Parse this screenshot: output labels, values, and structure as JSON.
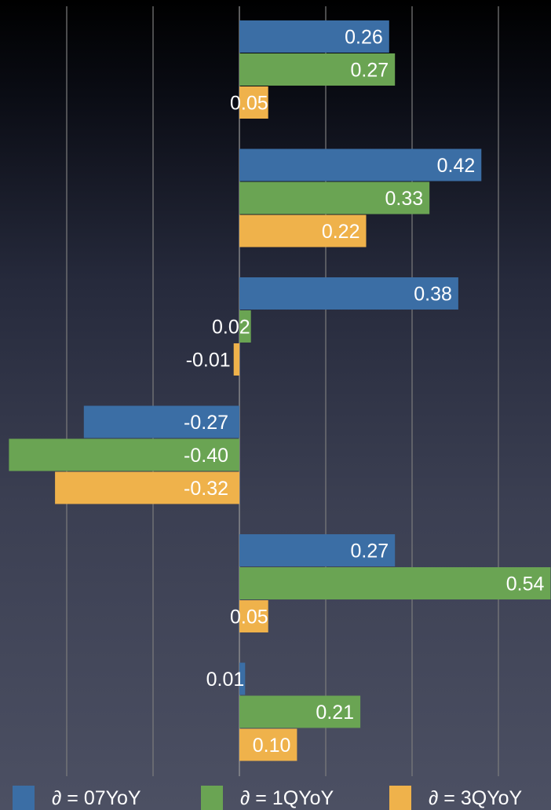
{
  "chart_data": {
    "type": "bar",
    "orientation": "horizontal",
    "grid": true,
    "legend_position": "bottom",
    "xlim": [
      -0.42,
      0.54
    ],
    "groups": 6,
    "series": [
      {
        "name": "∂ = 07YoY",
        "color": "#3b6ea5",
        "values": [
          0.26,
          0.42,
          0.38,
          -0.27,
          0.27,
          0.01
        ],
        "labels": [
          "0.26",
          "0.42",
          "0.38",
          "-0.27",
          "0.27",
          "0.01"
        ]
      },
      {
        "name": "∂ = 1QYoY",
        "color": "#6aa453",
        "values": [
          0.27,
          0.33,
          0.02,
          -0.4,
          0.54,
          0.21
        ],
        "labels": [
          "0.27",
          "0.33",
          "0.02",
          "-0.40",
          "0.54",
          "0.21"
        ]
      },
      {
        "name": "∂ = 3QYoY",
        "color": "#efb24b",
        "values": [
          0.05,
          0.22,
          -0.01,
          -0.32,
          0.05,
          0.1
        ],
        "labels": [
          "0.05",
          "0.22",
          "-0.01",
          "-0.32",
          "0.05",
          "0.10"
        ]
      }
    ]
  }
}
